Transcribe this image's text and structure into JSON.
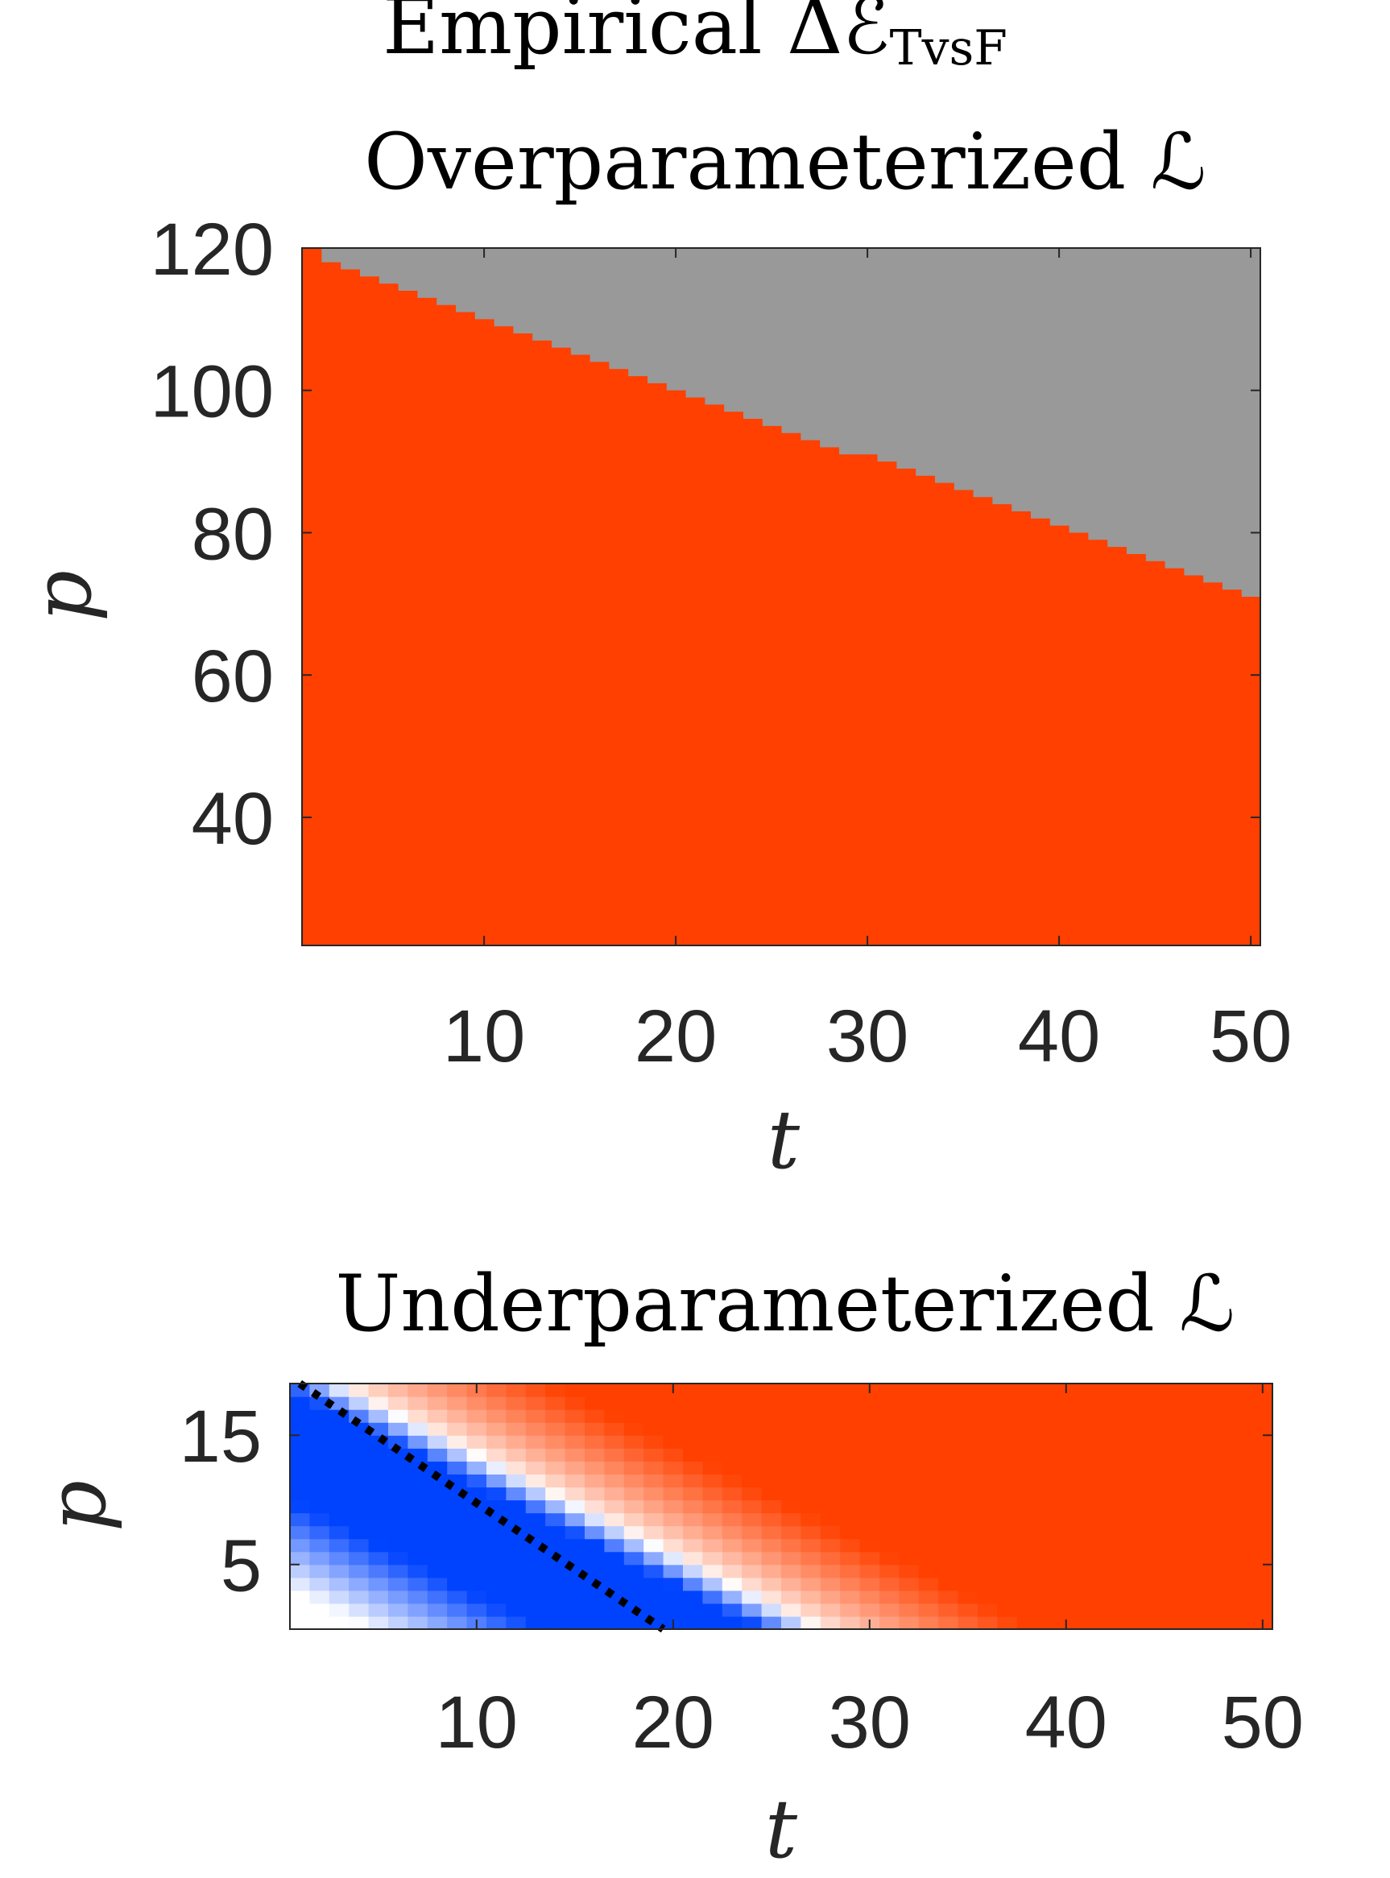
{
  "figure": {
    "suptitle_prefix": "Empirical ",
    "suptitle_symbol": "ΔℰTvsF",
    "suptitle_symbol_main": "Δℰ",
    "suptitle_symbol_sub": "TvsF"
  },
  "colors": {
    "gray": "#999999",
    "red": "#ff4000",
    "blue": "#0043ff",
    "white": "#ffffff",
    "axis": "#262626"
  },
  "chart_data": [
    {
      "type": "heatmap",
      "title": "Overparameterized ℒ",
      "xlabel": "t",
      "ylabel": "p",
      "x_range": [
        1,
        50
      ],
      "y_range": [
        22,
        120
      ],
      "xticks": [
        10,
        20,
        30,
        40,
        50
      ],
      "yticks": [
        40,
        60,
        80,
        100,
        120
      ],
      "xtick_labels": [
        "10",
        "20",
        "30",
        "40",
        "50"
      ],
      "ytick_labels": [
        "40",
        "60",
        "80",
        "100",
        "120"
      ],
      "regions": [
        {
          "label": "below boundary",
          "color": "red"
        },
        {
          "label": "above boundary (no data)",
          "color": "gray"
        }
      ],
      "boundary": {
        "t": [
          1,
          10,
          20,
          30,
          40,
          50
        ],
        "p": [
          119.5,
          110,
          100,
          90.5,
          81,
          71
        ]
      }
    },
    {
      "type": "heatmap",
      "title": "Underparameterized ℒ",
      "xlabel": "t",
      "ylabel": "p",
      "x_range": [
        1,
        50
      ],
      "y_range": [
        1,
        19
      ],
      "xticks": [
        10,
        20,
        30,
        40,
        50
      ],
      "yticks": [
        5,
        15
      ],
      "xtick_labels": [
        "10",
        "20",
        "30",
        "40",
        "50"
      ],
      "ytick_labels": [
        "5",
        "15"
      ],
      "colormap": "blue-white-red (negative → blue, zero → white, positive → red)",
      "white_band": {
        "t_at_p0": 27.5,
        "slope_t_per_p": -1.3
      },
      "blue_band_width_t": 14,
      "red_ramp_width_t": 11,
      "dotted_line": {
        "t": [
          1,
          19.5
        ],
        "p": [
          19,
          0
        ],
        "style": "black dotted"
      }
    }
  ]
}
